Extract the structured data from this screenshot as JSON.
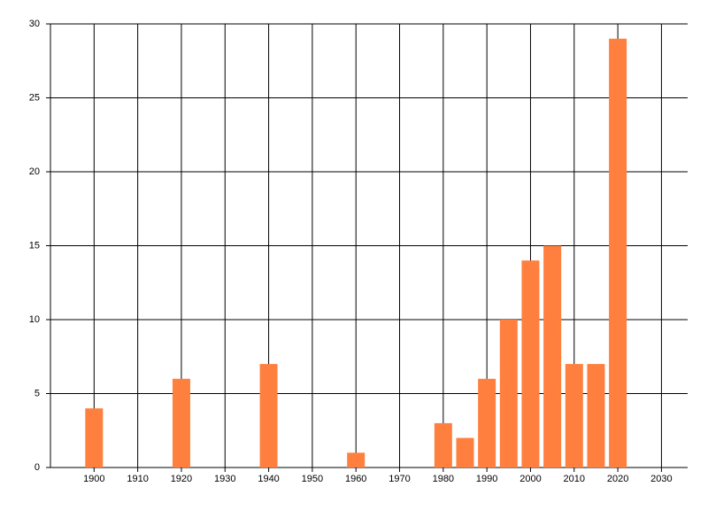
{
  "chart_data": {
    "type": "bar",
    "x": [
      1900,
      1920,
      1940,
      1960,
      1980,
      1985,
      1990,
      1995,
      2000,
      2005,
      2010,
      2015,
      2020
    ],
    "values": [
      4,
      6,
      7,
      1,
      3,
      2,
      6,
      10,
      14,
      15,
      7,
      7,
      29
    ],
    "color": "#ff7f3f",
    "xlim": [
      1890,
      2036
    ],
    "xticks": [
      1900,
      1910,
      1920,
      1930,
      1940,
      1950,
      1960,
      1970,
      1980,
      1990,
      2000,
      2010,
      2020,
      2030
    ],
    "ylim": [
      0,
      30
    ],
    "yticks": [
      0,
      5,
      10,
      15,
      20,
      25,
      30
    ],
    "grid": true
  }
}
